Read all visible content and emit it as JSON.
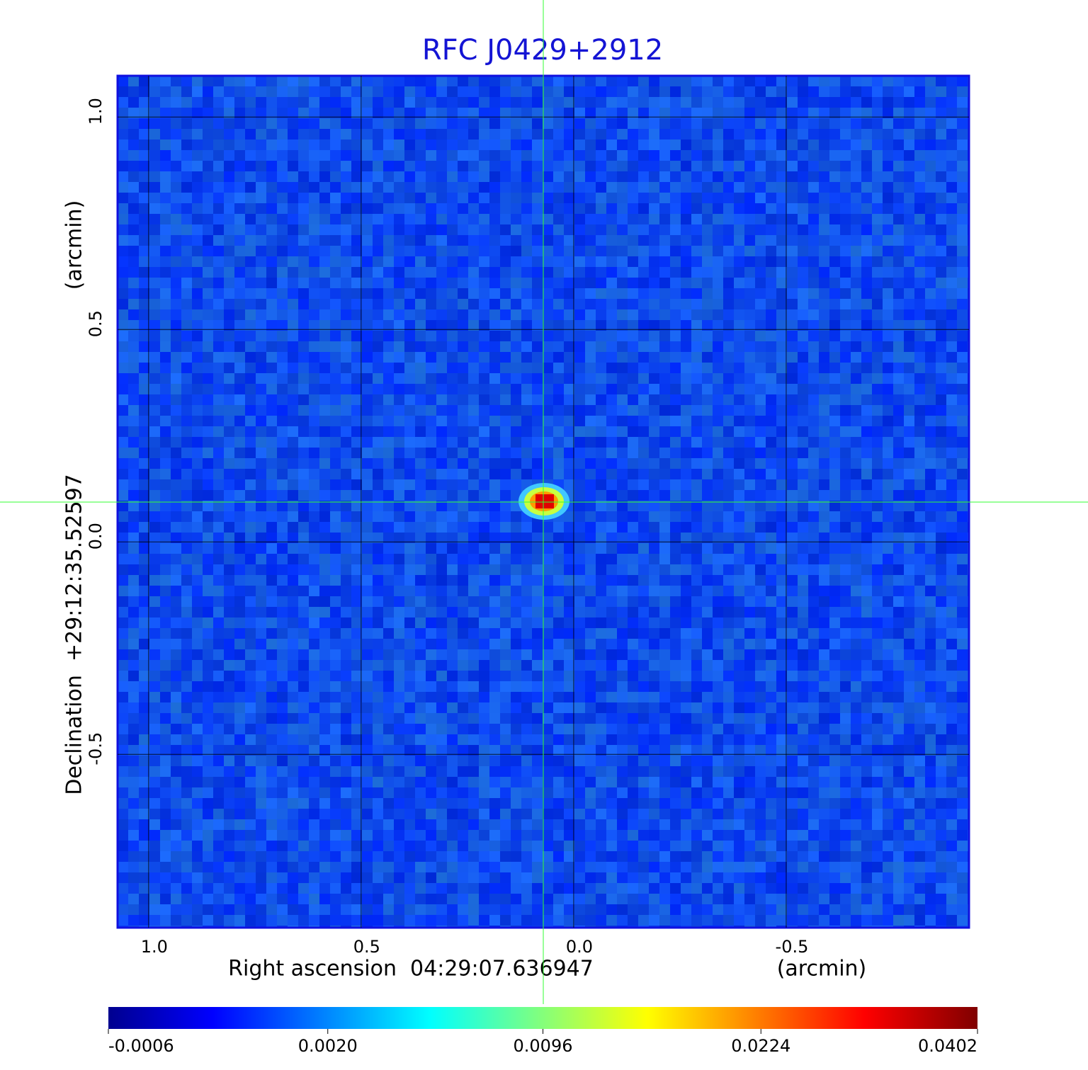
{
  "chart_data": {
    "type": "image",
    "title": "RFC J0429+2912",
    "xlabel": "Right ascension  04:29:07.636947",
    "xunit": "(arcmin)",
    "ylabel": "Declination  +29:12:35.52597",
    "yunit": "(arcmin)",
    "xlim": [
      1.073,
      -0.93
    ],
    "xticks": [
      {
        "value": 1,
        "label": "1.0"
      },
      0.5,
      {
        "value": 0,
        "label": "0.0"
      },
      -0.5
    ],
    "ylim": [
      -0.908,
      1.097
    ],
    "yticks": [
      -0.5,
      {
        "value": 0,
        "label": "0.0"
      },
      0.5,
      {
        "value": 1,
        "label": "1.0"
      }
    ],
    "grid": true,
    "colorbar": {
      "scale": "sqrt",
      "lim": [
        -0.0006,
        0.0402
      ],
      "ticks": [
        -0.0006,
        {
          "value": 0.002,
          "label": "0.0020"
        },
        0.0096,
        0.0224,
        0.0402
      ]
    }
  }
}
